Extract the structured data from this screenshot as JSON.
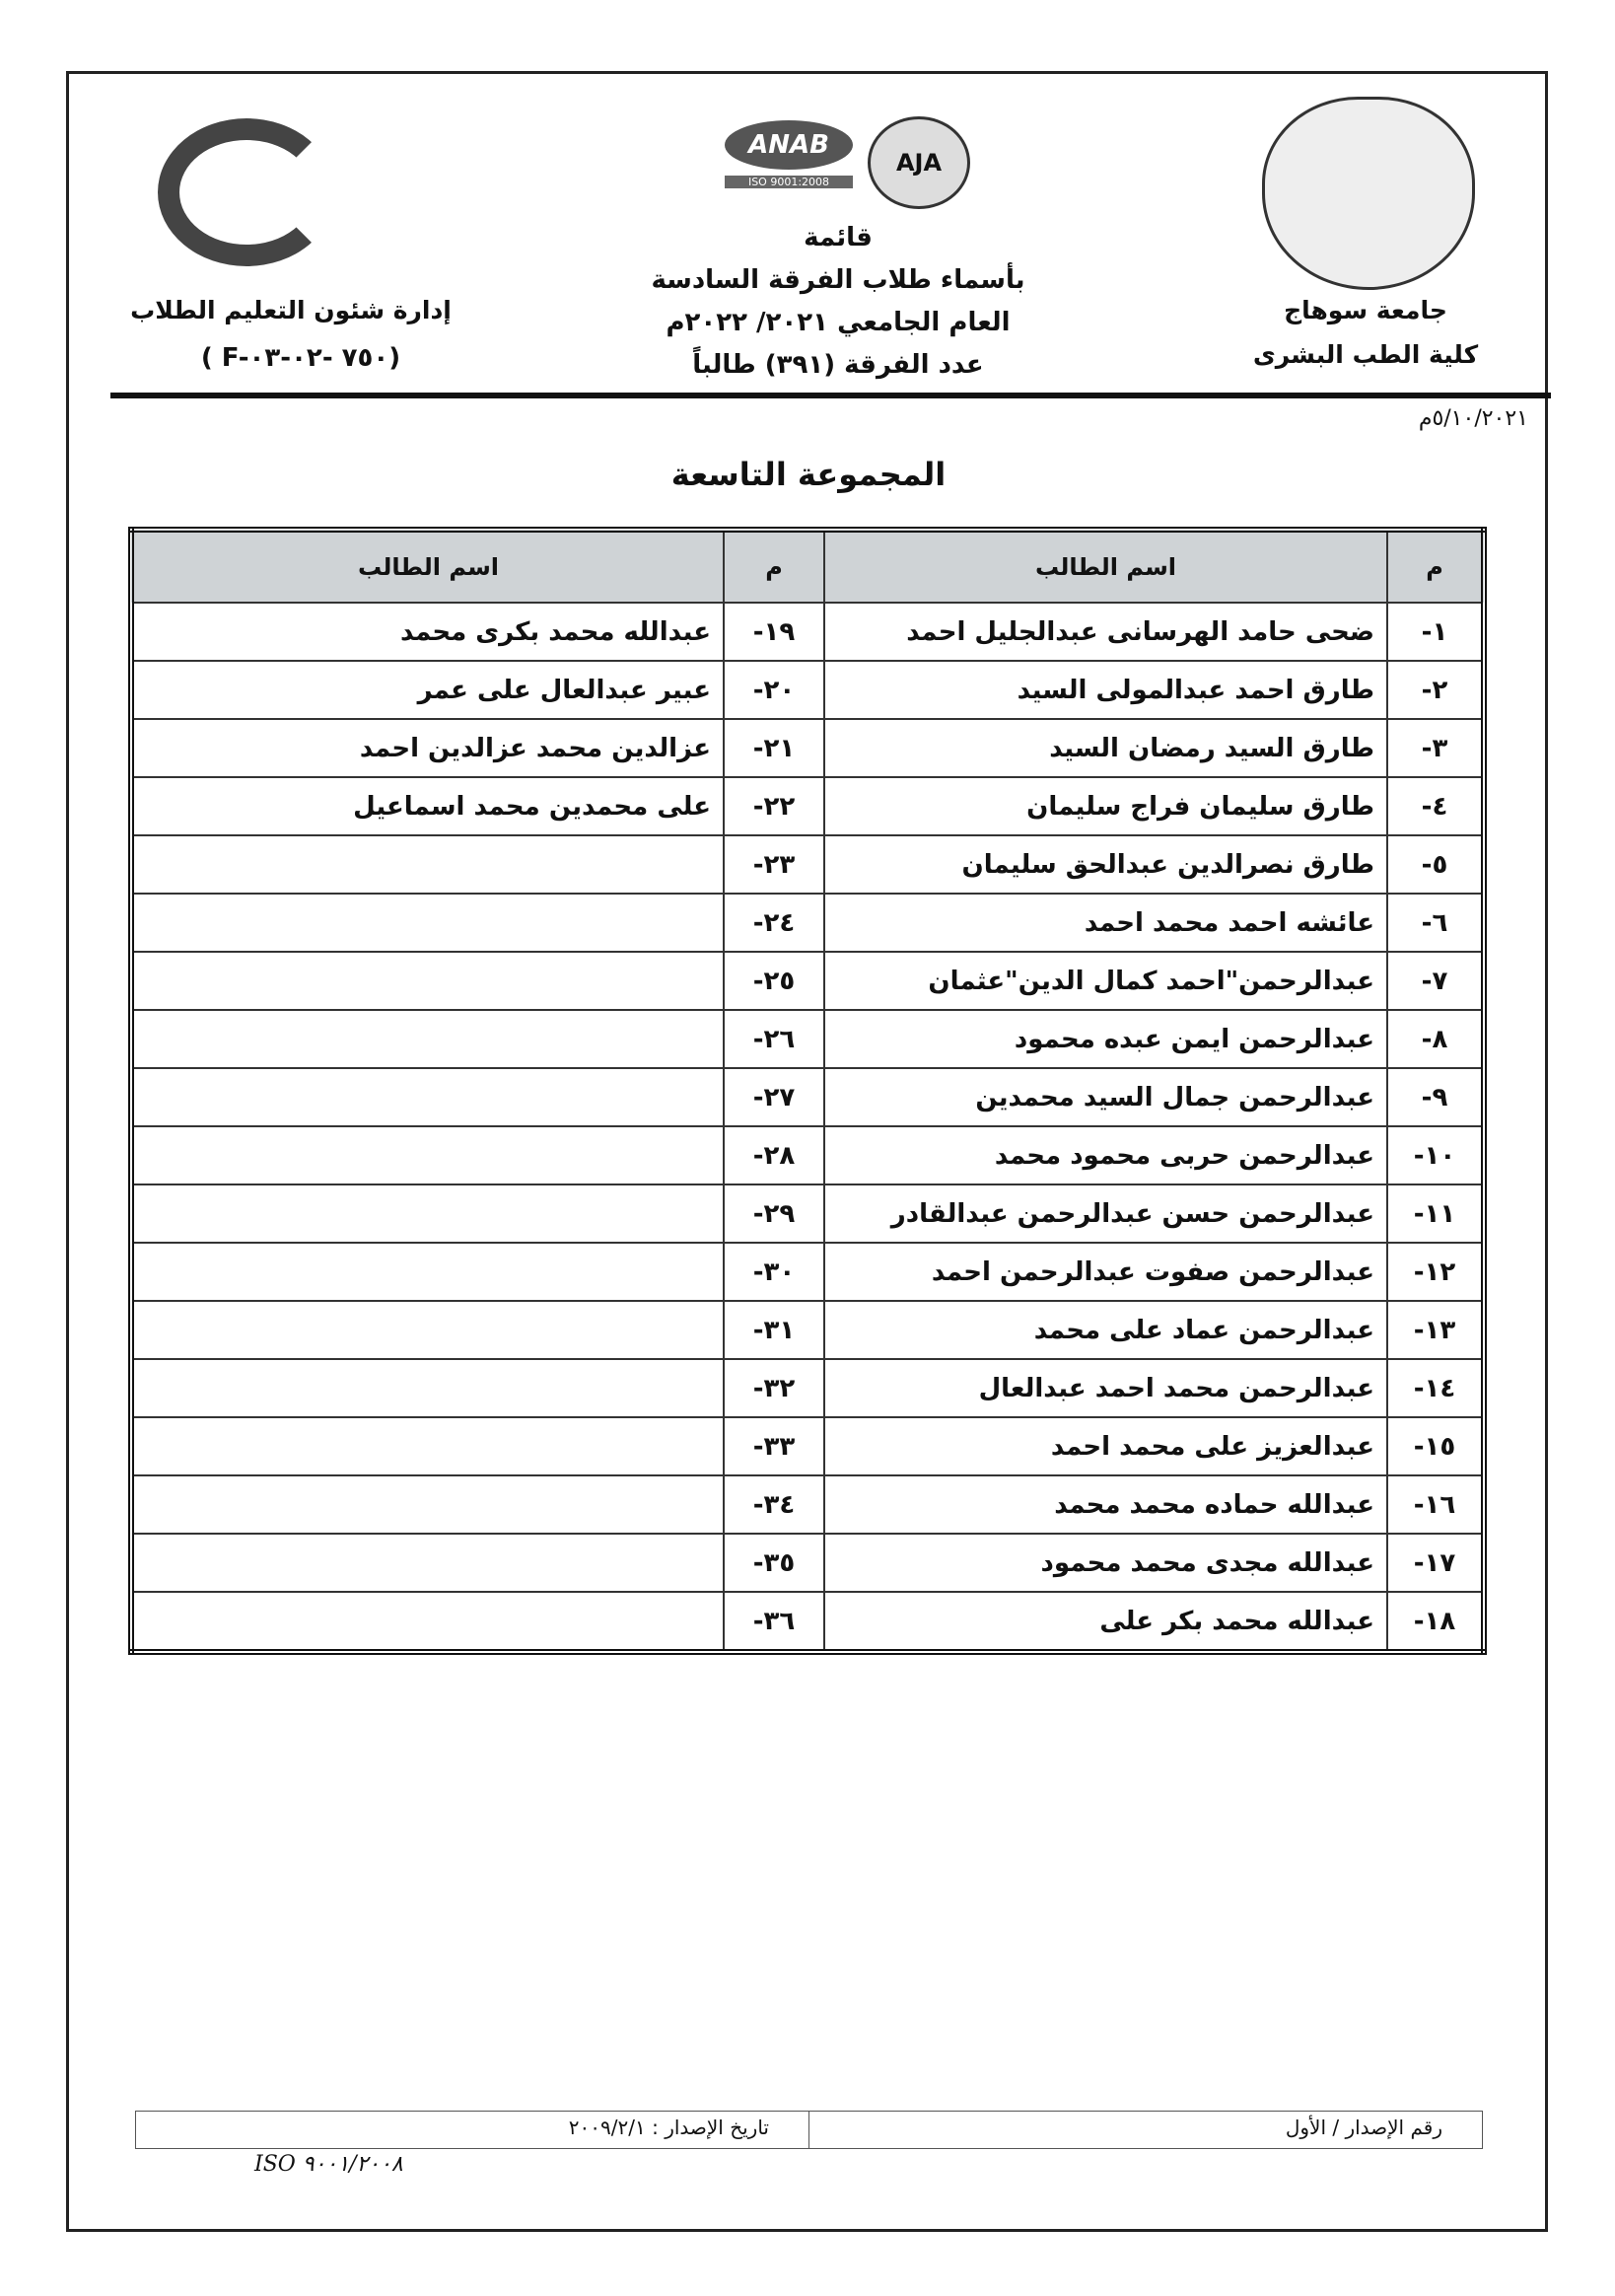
{
  "header": {
    "right": {
      "university": "جامعة سوهاج",
      "faculty": "كلية الطب البشرى"
    },
    "center": {
      "logos": {
        "anab": "ANAB",
        "anab_sub": "ISO 9001:2008",
        "aja": "AJA"
      },
      "lines": [
        "قائمة",
        "بأسماء طلاب الفرقة السادسة",
        "العام الجامعي ٢٠٢١/ ٢٠٢٢م",
        "عدد الفرقة (٣٩١) طالباً"
      ]
    },
    "left": {
      "department": "إدارة شئون التعليم الطلاب",
      "form_code": "( F-٧٥٠ -٠٢-٠٣)",
      "logo_text": "جامعة سوهاج كلية الطب"
    }
  },
  "date": "٥/١٠/٢٠٢١م",
  "group_title": "المجموعة التاسعة",
  "table": {
    "headers": {
      "num": "م",
      "name": "اسم الطالب"
    },
    "right_column": [
      {
        "n": "١-",
        "name": "ضحى حامد الهرسانى عبدالجليل احمد"
      },
      {
        "n": "٢-",
        "name": "طارق احمد عبدالمولى السيد"
      },
      {
        "n": "٣-",
        "name": "طارق السيد رمضان السيد"
      },
      {
        "n": "٤-",
        "name": "طارق سليمان فراج سليمان"
      },
      {
        "n": "٥-",
        "name": "طارق نصرالدين عبدالحق سليمان"
      },
      {
        "n": "٦-",
        "name": "عائشه احمد محمد احمد"
      },
      {
        "n": "٧-",
        "name": "عبدالرحمن\"احمد كمال الدين\"عثمان"
      },
      {
        "n": "٨-",
        "name": "عبدالرحمن ايمن عبده محمود"
      },
      {
        "n": "٩-",
        "name": "عبدالرحمن جمال السيد محمدين"
      },
      {
        "n": "١٠-",
        "name": "عبدالرحمن حربى محمود محمد"
      },
      {
        "n": "١١-",
        "name": "عبدالرحمن حسن عبدالرحمن عبدالقادر"
      },
      {
        "n": "١٢-",
        "name": "عبدالرحمن صفوت عبدالرحمن احمد"
      },
      {
        "n": "١٣-",
        "name": "عبدالرحمن عماد على محمد"
      },
      {
        "n": "١٤-",
        "name": "عبدالرحمن محمد احمد عبدالعال"
      },
      {
        "n": "١٥-",
        "name": "عبدالعزيز على محمد احمد"
      },
      {
        "n": "١٦-",
        "name": "عبدالله حماده محمد محمد"
      },
      {
        "n": "١٧-",
        "name": "عبدالله مجدى محمد محمود"
      },
      {
        "n": "١٨-",
        "name": "عبدالله محمد بكر على"
      }
    ],
    "left_column": [
      {
        "n": "١٩-",
        "name": "عبدالله محمد بكرى محمد"
      },
      {
        "n": "٢٠-",
        "name": "عبير عبدالعال على عمر"
      },
      {
        "n": "٢١-",
        "name": "عزالدين محمد عزالدين احمد"
      },
      {
        "n": "٢٢-",
        "name": "على محمدين محمد اسماعيل"
      },
      {
        "n": "٢٣-",
        "name": ""
      },
      {
        "n": "٢٤-",
        "name": ""
      },
      {
        "n": "٢٥-",
        "name": ""
      },
      {
        "n": "٢٦-",
        "name": ""
      },
      {
        "n": "٢٧-",
        "name": ""
      },
      {
        "n": "٢٨-",
        "name": ""
      },
      {
        "n": "٢٩-",
        "name": ""
      },
      {
        "n": "٣٠-",
        "name": ""
      },
      {
        "n": "٣١-",
        "name": ""
      },
      {
        "n": "٣٢-",
        "name": ""
      },
      {
        "n": "٣٣-",
        "name": ""
      },
      {
        "n": "٣٤-",
        "name": ""
      },
      {
        "n": "٣٥-",
        "name": ""
      },
      {
        "n": "٣٦-",
        "name": ""
      }
    ]
  },
  "footer": {
    "issue_number": "رقم الإصدار / الأول",
    "issue_date": "تاريخ الإصدار : ٢٠٠٩/٢/١",
    "iso": "ISO ٩٠٠١/٢٠٠٨"
  }
}
